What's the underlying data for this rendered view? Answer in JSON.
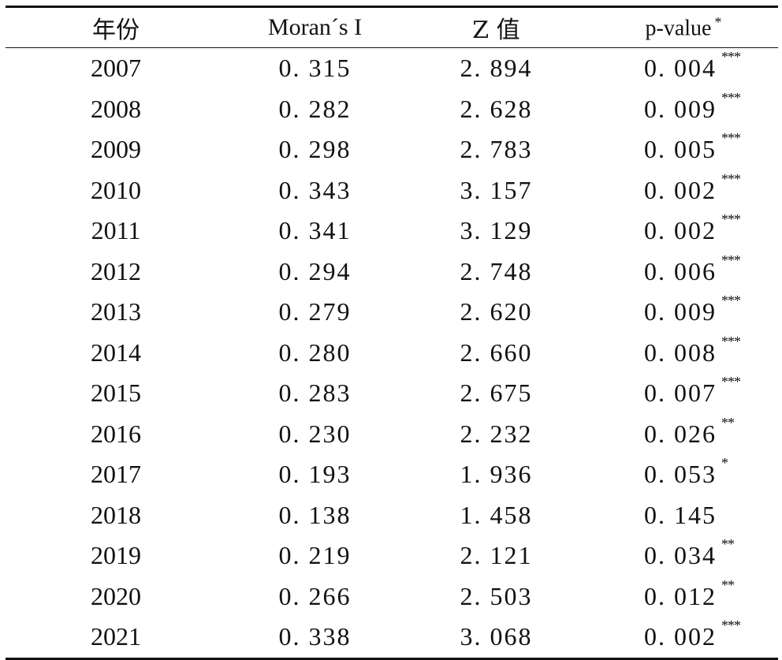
{
  "table": {
    "headers": {
      "year": "年份",
      "moran": "Moran´s I",
      "z": "Z 值",
      "p": "p-value",
      "p_star": "*"
    },
    "rows": [
      {
        "year": "2007",
        "moran": "0. 315",
        "z": "2. 894",
        "p": "0. 004",
        "stars": "***"
      },
      {
        "year": "2008",
        "moran": "0. 282",
        "z": "2. 628",
        "p": "0. 009",
        "stars": "***"
      },
      {
        "year": "2009",
        "moran": "0. 298",
        "z": "2. 783",
        "p": "0. 005",
        "stars": "***"
      },
      {
        "year": "2010",
        "moran": "0. 343",
        "z": "3. 157",
        "p": "0. 002",
        "stars": "***"
      },
      {
        "year": "2011",
        "moran": "0. 341",
        "z": "3. 129",
        "p": "0. 002",
        "stars": "***"
      },
      {
        "year": "2012",
        "moran": "0. 294",
        "z": "2. 748",
        "p": "0. 006",
        "stars": "***"
      },
      {
        "year": "2013",
        "moran": "0. 279",
        "z": "2. 620",
        "p": "0. 009",
        "stars": "***"
      },
      {
        "year": "2014",
        "moran": "0. 280",
        "z": "2. 660",
        "p": "0. 008",
        "stars": "***"
      },
      {
        "year": "2015",
        "moran": "0. 283",
        "z": "2. 675",
        "p": "0. 007",
        "stars": "***"
      },
      {
        "year": "2016",
        "moran": "0. 230",
        "z": "2. 232",
        "p": "0. 026",
        "stars": "**"
      },
      {
        "year": "2017",
        "moran": "0. 193",
        "z": "1. 936",
        "p": "0. 053",
        "stars": "*"
      },
      {
        "year": "2018",
        "moran": "0. 138",
        "z": "1. 458",
        "p": "0. 145",
        "stars": ""
      },
      {
        "year": "2019",
        "moran": "0. 219",
        "z": "2. 121",
        "p": "0. 034",
        "stars": "**"
      },
      {
        "year": "2020",
        "moran": "0. 266",
        "z": "2. 503",
        "p": "0. 012",
        "stars": "**"
      },
      {
        "year": "2021",
        "moran": "0. 338",
        "z": "3. 068",
        "p": "0. 002",
        "stars": "***"
      }
    ]
  }
}
